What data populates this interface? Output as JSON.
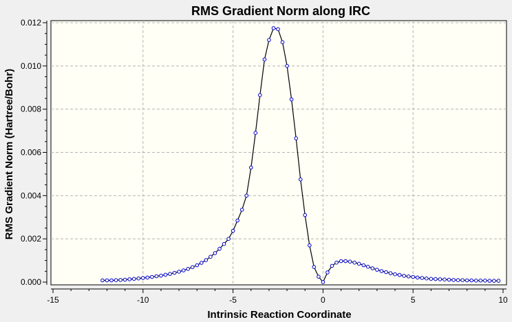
{
  "chart_data": {
    "type": "line",
    "title": "RMS Gradient Norm along IRC",
    "xlabel": "Intrinsic Reaction Coordinate",
    "ylabel": "RMS Gradient Norm (Hartree/Bohr)",
    "xlim": [
      -15,
      10
    ],
    "ylim": [
      0,
      0.012
    ],
    "x_ticks": [
      -15,
      -10,
      -5,
      0,
      5,
      10
    ],
    "x_tick_labels": [
      "-15",
      "-10",
      "-5",
      "0",
      "5",
      "10"
    ],
    "y_ticks": [
      0,
      0.002,
      0.004,
      0.006,
      0.008,
      0.01,
      0.012
    ],
    "y_tick_labels": [
      "0.000",
      "0.002",
      "0.004",
      "0.006",
      "0.008",
      "0.010",
      "0.012"
    ],
    "grid": true,
    "legend": "none",
    "colors": {
      "line": "#000000",
      "marker_stroke": "#0000cc",
      "marker_fill": "#ffffff",
      "plot_background": "#fffff5",
      "grid": "#b4b4b4"
    },
    "series": [
      {
        "x": [
          -12.25,
          -12.0,
          -11.75,
          -11.5,
          -11.25,
          -11.0,
          -10.75,
          -10.5,
          -10.25,
          -10.0,
          -9.75,
          -9.5,
          -9.25,
          -9.0,
          -8.75,
          -8.5,
          -8.25,
          -8.0,
          -7.75,
          -7.5,
          -7.25,
          -7.0,
          -6.75,
          -6.5,
          -6.25,
          -6.0,
          -5.75,
          -5.5,
          -5.25,
          -5.0,
          -4.75,
          -4.5,
          -4.25,
          -4.0,
          -3.75,
          -3.5,
          -3.25,
          -3.0,
          -2.75,
          -2.5,
          -2.25,
          -2.0,
          -1.75,
          -1.5,
          -1.25,
          -1.0,
          -0.75,
          -0.5,
          -0.25,
          0.0,
          0.25,
          0.5,
          0.75,
          1.0,
          1.25,
          1.5,
          1.75,
          2.0,
          2.25,
          2.5,
          2.75,
          3.0,
          3.25,
          3.5,
          3.75,
          4.0,
          4.25,
          4.5,
          4.75,
          5.0,
          5.25,
          5.5,
          5.75,
          6.0,
          6.25,
          6.5,
          6.75,
          7.0,
          7.25,
          7.5,
          7.75,
          8.0,
          8.25,
          8.5,
          8.75,
          9.0,
          9.25,
          9.5,
          9.75
        ],
        "y": [
          8e-05,
          8e-05,
          8e-05,
          9e-05,
          0.0001,
          0.00011,
          0.00013,
          0.00015,
          0.00017,
          0.00019,
          0.00021,
          0.00024,
          0.00027,
          0.0003,
          0.00034,
          0.00038,
          0.00043,
          0.00048,
          0.00054,
          0.00061,
          0.00069,
          0.00078,
          0.00089,
          0.00102,
          0.00117,
          0.00134,
          0.00154,
          0.00176,
          0.002,
          0.00237,
          0.00285,
          0.00335,
          0.004,
          0.0053,
          0.0069,
          0.00865,
          0.0103,
          0.0112,
          0.01175,
          0.0117,
          0.0111,
          0.01,
          0.00845,
          0.00665,
          0.00475,
          0.0031,
          0.0017,
          0.0007,
          0.00025,
          0.0,
          0.00045,
          0.00075,
          0.0009,
          0.00097,
          0.00097,
          0.00095,
          0.0009,
          0.00085,
          0.00078,
          0.00071,
          0.00064,
          0.00057,
          0.00051,
          0.00046,
          0.00041,
          0.00036,
          0.00033,
          0.00029,
          0.00026,
          0.00024,
          0.00021,
          0.00019,
          0.00017,
          0.00015,
          0.00014,
          0.00013,
          0.00012,
          0.00011,
          0.0001,
          9e-05,
          9e-05,
          8e-05,
          8e-05,
          7e-05,
          7e-05,
          7e-05,
          6e-05,
          6e-05,
          6e-05
        ]
      }
    ]
  }
}
